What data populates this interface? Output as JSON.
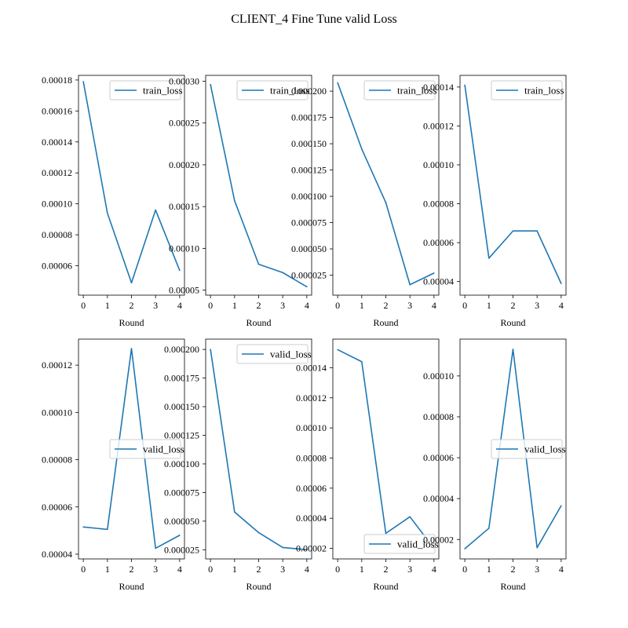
{
  "figure": {
    "suptitle": "CLIENT_4 Fine Tune valid Loss"
  },
  "style": {
    "line_color": "#1f77b4",
    "axes_color": "#000000",
    "legend_border": "#cccccc"
  },
  "chart_data": [
    {
      "type": "line",
      "xlabel": "Round",
      "x": [
        0,
        1,
        2,
        3,
        4
      ],
      "xticks": [
        "0",
        "1",
        "2",
        "3",
        "4"
      ],
      "ylim": [
        4.1e-05,
        0.000183
      ],
      "yticks": [
        "0.00006",
        "0.00008",
        "0.00010",
        "0.00012",
        "0.00014",
        "0.00016",
        "0.00018"
      ],
      "legend": "upper right",
      "series": [
        {
          "name": "train_loss",
          "values": [
            0.000179,
            9.4e-05,
            4.9e-05,
            9.6e-05,
            5.7e-05
          ]
        }
      ]
    },
    {
      "type": "line",
      "xlabel": "Round",
      "x": [
        0,
        1,
        2,
        3,
        4
      ],
      "xticks": [
        "0",
        "1",
        "2",
        "3",
        "4"
      ],
      "ylim": [
        4.4e-05,
        0.000307
      ],
      "yticks": [
        "0.00005",
        "0.00010",
        "0.00015",
        "0.00020",
        "0.00025",
        "0.00030"
      ],
      "legend": "upper right",
      "series": [
        {
          "name": "train_loss",
          "values": [
            0.000296,
            0.000157,
            8.1e-05,
            7.1e-05,
            5.4e-05
          ]
        }
      ]
    },
    {
      "type": "line",
      "xlabel": "Round",
      "x": [
        0,
        1,
        2,
        3,
        4
      ],
      "xticks": [
        "0",
        "1",
        "2",
        "3",
        "4"
      ],
      "ylim": [
        6e-06,
        0.000215
      ],
      "yticks": [
        "0.000025",
        "0.000050",
        "0.000075",
        "0.000100",
        "0.000125",
        "0.000150",
        "0.000175",
        "0.000200"
      ],
      "legend": "upper right",
      "series": [
        {
          "name": "train_loss",
          "values": [
            0.000208,
            0.000145,
            9.4e-05,
            1.6e-05,
            2.7e-05
          ]
        }
      ]
    },
    {
      "type": "line",
      "xlabel": "Round",
      "x": [
        0,
        1,
        2,
        3,
        4
      ],
      "xticks": [
        "0",
        "1",
        "2",
        "3",
        "4"
      ],
      "ylim": [
        3.3e-05,
        0.000146
      ],
      "yticks": [
        "0.00004",
        "0.00006",
        "0.00008",
        "0.00010",
        "0.00012",
        "0.00014"
      ],
      "legend": "upper right",
      "series": [
        {
          "name": "train_loss",
          "values": [
            0.000141,
            5.2e-05,
            6.6e-05,
            6.6e-05,
            3.9e-05
          ]
        }
      ]
    },
    {
      "type": "line",
      "xlabel": "Round",
      "x": [
        0,
        1,
        2,
        3,
        4
      ],
      "xticks": [
        "0",
        "1",
        "2",
        "3",
        "4"
      ],
      "ylim": [
        3.8e-05,
        0.000131
      ],
      "yticks": [
        "0.00004",
        "0.00006",
        "0.00008",
        "0.00010",
        "0.00012"
      ],
      "legend": "center right",
      "series": [
        {
          "name": "valid_loss",
          "values": [
            5.15e-05,
            5.05e-05,
            0.000127,
            4.25e-05,
            4.8e-05
          ]
        }
      ]
    },
    {
      "type": "line",
      "xlabel": "Round",
      "x": [
        0,
        1,
        2,
        3,
        4
      ],
      "xticks": [
        "0",
        "1",
        "2",
        "3",
        "4"
      ],
      "ylim": [
        1.7e-05,
        0.000209
      ],
      "yticks": [
        "0.000025",
        "0.000050",
        "0.000075",
        "0.000100",
        "0.000125",
        "0.000150",
        "0.000175",
        "0.000200"
      ],
      "legend": "upper right",
      "series": [
        {
          "name": "valid_loss",
          "values": [
            0.0002,
            5.8e-05,
            4e-05,
            2.7e-05,
            2.5e-05
          ]
        }
      ]
    },
    {
      "type": "line",
      "xlabel": "Round",
      "x": [
        0,
        1,
        2,
        3,
        4
      ],
      "xticks": [
        "0",
        "1",
        "2",
        "3",
        "4"
      ],
      "ylim": [
        1.3e-05,
        0.000159
      ],
      "yticks": [
        "0.00002",
        "0.00004",
        "0.00006",
        "0.00008",
        "0.00010",
        "0.00012",
        "0.00014"
      ],
      "legend": "lower right",
      "series": [
        {
          "name": "valid_loss",
          "values": [
            0.000152,
            0.000144,
            3e-05,
            4.1e-05,
            2e-05
          ]
        }
      ]
    },
    {
      "type": "line",
      "xlabel": "Round",
      "x": [
        0,
        1,
        2,
        3,
        4
      ],
      "xticks": [
        "0",
        "1",
        "2",
        "3",
        "4"
      ],
      "ylim": [
        1.05e-05,
        0.000118
      ],
      "yticks": [
        "0.00002",
        "0.00004",
        "0.00006",
        "0.00008",
        "0.00010"
      ],
      "legend": "center right",
      "series": [
        {
          "name": "valid_loss",
          "values": [
            1.55e-05,
            2.55e-05,
            0.000113,
            1.6e-05,
            3.65e-05
          ]
        }
      ]
    }
  ]
}
